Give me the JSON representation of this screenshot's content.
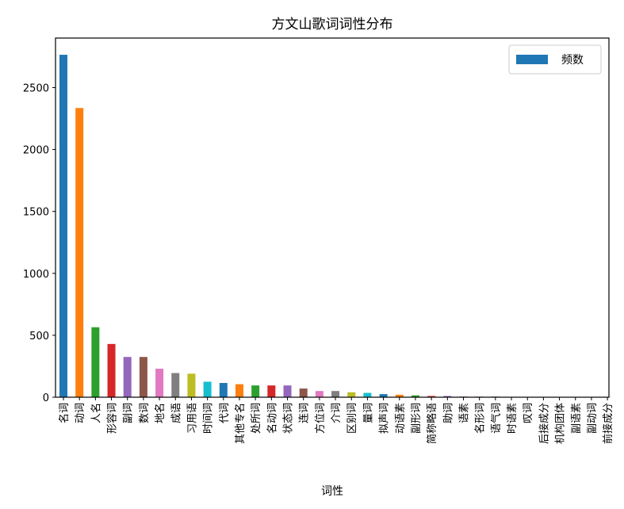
{
  "chart_data": {
    "type": "bar",
    "title": "方文山歌词词性分布",
    "xlabel": "词性",
    "ylabel": "",
    "ylim": [
      0,
      2900
    ],
    "yticks": [
      0,
      500,
      1000,
      1500,
      2000,
      2500
    ],
    "legend": {
      "position": "top-right",
      "entries": [
        "频数"
      ]
    },
    "grid": false,
    "categories": [
      "名词",
      "动词",
      "人名",
      "形容词",
      "副词",
      "数词",
      "地名",
      "成语",
      "习用语",
      "时间词",
      "代词",
      "其他专名",
      "处所词",
      "名动词",
      "状态词",
      "连词",
      "方位词",
      "介词",
      "区别词",
      "量词",
      "拟声词",
      "动语素",
      "副形词",
      "简称略语",
      "助词",
      "语素",
      "名形词",
      "语气词",
      "时语素",
      "叹词",
      "后接成分",
      "机构团体",
      "副语素",
      "副动词",
      "前接成分"
    ],
    "series": [
      {
        "name": "频数",
        "values": [
          2765,
          2335,
          565,
          430,
          325,
          325,
          230,
          195,
          190,
          125,
          115,
          105,
          95,
          95,
          95,
          70,
          50,
          50,
          40,
          35,
          25,
          20,
          15,
          10,
          10,
          5,
          5,
          5,
          3,
          3,
          2,
          2,
          2,
          2,
          2
        ]
      }
    ],
    "bar_colors": [
      "#1f77b4",
      "#ff7f0e",
      "#2ca02c",
      "#d62728",
      "#9467bd",
      "#8c564b",
      "#e377c2",
      "#7f7f7f",
      "#bcbd22",
      "#17becf"
    ]
  }
}
